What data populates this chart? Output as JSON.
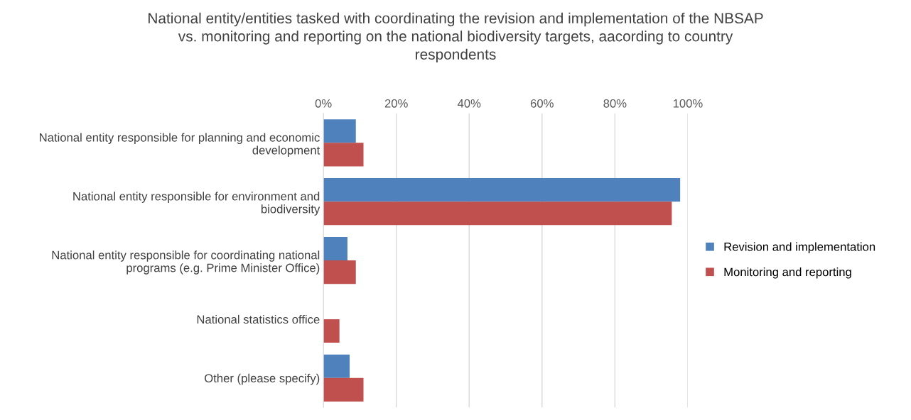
{
  "chart_data": {
    "type": "bar",
    "orientation": "horizontal",
    "title": "National entity/entities tasked with coordinating the revision and implementation of the NBSAP\nvs. monitoring and reporting on the national biodiversity targets, aacording to country\nrespondents",
    "categories": [
      "National entity responsible for planning and economic\ndevelopment",
      "National entity responsible for environment and\nbiodiversity",
      "National entity responsible for coordinating national\nprograms (e.g. Prime Minister Office)",
      "National statistics office",
      "Other (please specify)"
    ],
    "series": [
      {
        "name": "Revision and implementation",
        "color": "#4f81bd",
        "values": [
          8.9,
          97.9,
          6.6,
          0,
          7.2
        ]
      },
      {
        "name": "Monitoring and reporting",
        "color": "#c0504d",
        "values": [
          11.0,
          95.6,
          8.9,
          4.4,
          11.0
        ]
      }
    ],
    "xlim": [
      0,
      100
    ],
    "xticks": [
      {
        "value": 0,
        "label": "0%"
      },
      {
        "value": 20,
        "label": "20%"
      },
      {
        "value": 40,
        "label": "40%"
      },
      {
        "value": 60,
        "label": "60%"
      },
      {
        "value": 80,
        "label": "80%"
      },
      {
        "value": 100,
        "label": "100%"
      }
    ],
    "grid": "x",
    "legend": "right"
  }
}
